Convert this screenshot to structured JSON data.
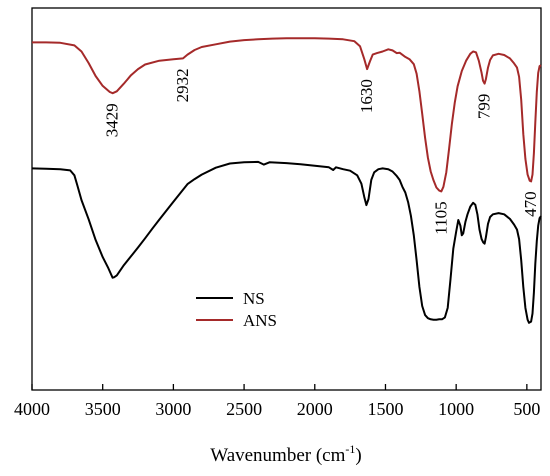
{
  "chart_data": {
    "type": "line",
    "title": "",
    "xlabel": "Wavenumber (cm",
    "xlabel_sup": "-1",
    "xlabel_close": ")",
    "ylabel": "",
    "xlim": [
      4000,
      400
    ],
    "x_reversed": true,
    "xticks": [
      4000,
      3500,
      3000,
      2500,
      2000,
      1500,
      1000,
      500
    ],
    "y_axis_ticks_visible": false,
    "grid": false,
    "legend_position": "lower-left-center",
    "series": [
      {
        "name": "ANS",
        "color": "#a52a2a",
        "points": [
          [
            4000,
            91.0
          ],
          [
            3900,
            91.0
          ],
          [
            3800,
            90.9
          ],
          [
            3700,
            90.2
          ],
          [
            3650,
            88.6
          ],
          [
            3600,
            85.6
          ],
          [
            3550,
            82.2
          ],
          [
            3500,
            79.6
          ],
          [
            3450,
            78.0
          ],
          [
            3429,
            77.7
          ],
          [
            3400,
            78.2
          ],
          [
            3350,
            80.2
          ],
          [
            3300,
            82.4
          ],
          [
            3250,
            84.0
          ],
          [
            3200,
            85.2
          ],
          [
            3100,
            86.2
          ],
          [
            3000,
            86.6
          ],
          [
            2932,
            86.8
          ],
          [
            2900,
            87.8
          ],
          [
            2850,
            89.0
          ],
          [
            2800,
            89.8
          ],
          [
            2700,
            90.5
          ],
          [
            2600,
            91.2
          ],
          [
            2500,
            91.6
          ],
          [
            2400,
            91.8
          ],
          [
            2300,
            92.0
          ],
          [
            2200,
            92.1
          ],
          [
            2100,
            92.1
          ],
          [
            2000,
            92.1
          ],
          [
            1900,
            92.0
          ],
          [
            1800,
            91.8
          ],
          [
            1720,
            91.3
          ],
          [
            1680,
            90.0
          ],
          [
            1650,
            86.6
          ],
          [
            1630,
            84.0
          ],
          [
            1610,
            86.0
          ],
          [
            1590,
            87.8
          ],
          [
            1560,
            88.2
          ],
          [
            1520,
            88.6
          ],
          [
            1480,
            89.2
          ],
          [
            1450,
            88.9
          ],
          [
            1420,
            88.2
          ],
          [
            1400,
            88.3
          ],
          [
            1360,
            87.2
          ],
          [
            1330,
            86.6
          ],
          [
            1300,
            85.3
          ],
          [
            1280,
            82.8
          ],
          [
            1260,
            78.2
          ],
          [
            1240,
            72.3
          ],
          [
            1220,
            66.0
          ],
          [
            1200,
            60.8
          ],
          [
            1180,
            57.2
          ],
          [
            1160,
            54.9
          ],
          [
            1140,
            53.0
          ],
          [
            1120,
            52.2
          ],
          [
            1105,
            52.0
          ],
          [
            1090,
            53.2
          ],
          [
            1070,
            57.0
          ],
          [
            1050,
            63.2
          ],
          [
            1030,
            69.7
          ],
          [
            1010,
            75.3
          ],
          [
            990,
            79.5
          ],
          [
            960,
            83.5
          ],
          [
            930,
            86.2
          ],
          [
            900,
            88.0
          ],
          [
            880,
            88.6
          ],
          [
            860,
            88.4
          ],
          [
            840,
            86.2
          ],
          [
            820,
            83.0
          ],
          [
            810,
            81.0
          ],
          [
            799,
            80.2
          ],
          [
            790,
            81.4
          ],
          [
            775,
            84.4
          ],
          [
            760,
            86.4
          ],
          [
            740,
            87.6
          ],
          [
            700,
            88.0
          ],
          [
            660,
            87.7
          ],
          [
            620,
            86.8
          ],
          [
            590,
            85.5
          ],
          [
            570,
            84.4
          ],
          [
            555,
            82.0
          ],
          [
            540,
            76.0
          ],
          [
            525,
            67.0
          ],
          [
            510,
            60.5
          ],
          [
            495,
            56.4
          ],
          [
            480,
            54.8
          ],
          [
            470,
            54.6
          ],
          [
            460,
            56.4
          ],
          [
            450,
            62.0
          ],
          [
            440,
            70.0
          ],
          [
            430,
            78.0
          ],
          [
            420,
            83.0
          ],
          [
            410,
            84.8
          ],
          [
            400,
            85.0
          ]
        ]
      },
      {
        "name": "NS",
        "color": "#000000",
        "points": [
          [
            4000,
            58.0
          ],
          [
            3900,
            57.9
          ],
          [
            3800,
            57.8
          ],
          [
            3730,
            57.5
          ],
          [
            3700,
            56.2
          ],
          [
            3680,
            53.7
          ],
          [
            3650,
            49.7
          ],
          [
            3600,
            44.7
          ],
          [
            3550,
            39.3
          ],
          [
            3500,
            34.8
          ],
          [
            3460,
            31.9
          ],
          [
            3440,
            30.2
          ],
          [
            3430,
            29.4
          ],
          [
            3420,
            29.5
          ],
          [
            3400,
            30.0
          ],
          [
            3380,
            31.1
          ],
          [
            3350,
            32.7
          ],
          [
            3300,
            35.0
          ],
          [
            3250,
            37.3
          ],
          [
            3200,
            39.7
          ],
          [
            3150,
            42.2
          ],
          [
            3100,
            44.6
          ],
          [
            3050,
            46.9
          ],
          [
            3000,
            49.3
          ],
          [
            2950,
            51.6
          ],
          [
            2900,
            53.9
          ],
          [
            2850,
            55.2
          ],
          [
            2800,
            56.4
          ],
          [
            2700,
            58.2
          ],
          [
            2600,
            59.3
          ],
          [
            2500,
            59.6
          ],
          [
            2400,
            59.7
          ],
          [
            2360,
            59.0
          ],
          [
            2320,
            59.6
          ],
          [
            2200,
            59.4
          ],
          [
            2100,
            59.1
          ],
          [
            2000,
            58.7
          ],
          [
            1900,
            58.3
          ],
          [
            1870,
            57.6
          ],
          [
            1850,
            58.3
          ],
          [
            1800,
            57.8
          ],
          [
            1750,
            57.4
          ],
          [
            1700,
            56.2
          ],
          [
            1670,
            54.0
          ],
          [
            1650,
            50.5
          ],
          [
            1635,
            48.4
          ],
          [
            1620,
            50.0
          ],
          [
            1600,
            55.0
          ],
          [
            1580,
            57.0
          ],
          [
            1550,
            57.8
          ],
          [
            1520,
            58.0
          ],
          [
            1480,
            57.8
          ],
          [
            1450,
            57.2
          ],
          [
            1420,
            56.0
          ],
          [
            1400,
            55.0
          ],
          [
            1380,
            53.2
          ],
          [
            1360,
            51.7
          ],
          [
            1340,
            49.2
          ],
          [
            1320,
            45.6
          ],
          [
            1300,
            40.5
          ],
          [
            1280,
            34.0
          ],
          [
            1260,
            27.0
          ],
          [
            1240,
            22.0
          ],
          [
            1220,
            19.6
          ],
          [
            1200,
            18.8
          ],
          [
            1180,
            18.5
          ],
          [
            1160,
            18.4
          ],
          [
            1140,
            18.4
          ],
          [
            1120,
            18.5
          ],
          [
            1100,
            18.5
          ],
          [
            1080,
            19.0
          ],
          [
            1060,
            21.5
          ],
          [
            1040,
            29.0
          ],
          [
            1020,
            37.0
          ],
          [
            1000,
            41.5
          ],
          [
            985,
            44.5
          ],
          [
            970,
            43.0
          ],
          [
            960,
            40.5
          ],
          [
            950,
            41.0
          ],
          [
            935,
            44.0
          ],
          [
            920,
            46.0
          ],
          [
            900,
            48.0
          ],
          [
            880,
            49.0
          ],
          [
            865,
            48.5
          ],
          [
            850,
            46.0
          ],
          [
            835,
            42.0
          ],
          [
            820,
            39.5
          ],
          [
            808,
            38.6
          ],
          [
            799,
            38.3
          ],
          [
            790,
            40.0
          ],
          [
            775,
            43.5
          ],
          [
            760,
            45.3
          ],
          [
            740,
            46.0
          ],
          [
            700,
            46.3
          ],
          [
            660,
            46.0
          ],
          [
            620,
            44.8
          ],
          [
            590,
            43.3
          ],
          [
            570,
            42.0
          ],
          [
            555,
            39.5
          ],
          [
            540,
            34.0
          ],
          [
            525,
            27.0
          ],
          [
            510,
            21.5
          ],
          [
            495,
            18.4
          ],
          [
            485,
            17.6
          ],
          [
            470,
            17.9
          ],
          [
            460,
            20.0
          ],
          [
            450,
            25.5
          ],
          [
            440,
            33.0
          ],
          [
            430,
            39.0
          ],
          [
            420,
            43.0
          ],
          [
            410,
            45.0
          ],
          [
            400,
            45.5
          ]
        ]
      }
    ],
    "annotations": [
      {
        "text": "3429",
        "x": 3429,
        "series": "ANS"
      },
      {
        "text": "2932",
        "x": 2932,
        "series": "ANS"
      },
      {
        "text": "1630",
        "x": 1630,
        "series": "ANS"
      },
      {
        "text": "1105",
        "x": 1105,
        "series": "ANS"
      },
      {
        "text": "799",
        "x": 799,
        "series": "ANS"
      },
      {
        "text": "470",
        "x": 470,
        "series": "ANS"
      }
    ]
  }
}
